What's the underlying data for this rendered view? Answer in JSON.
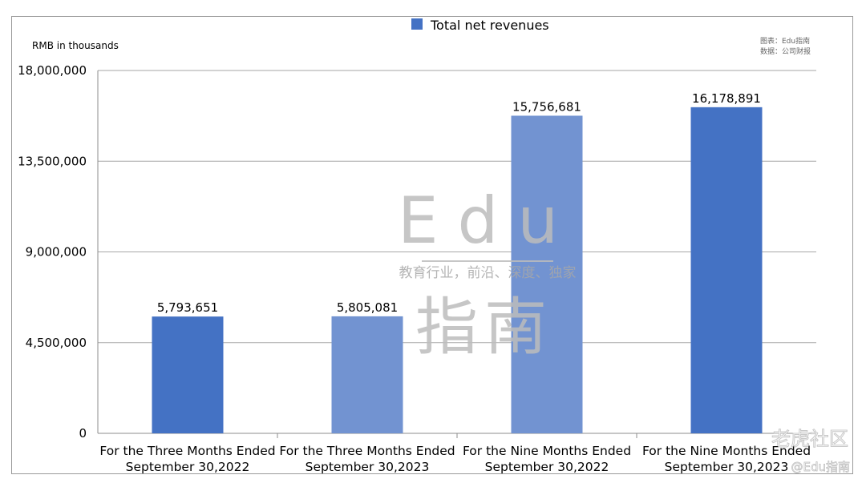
{
  "chart_data": {
    "type": "bar",
    "ylabel": "RMB in thousands",
    "legend": {
      "label": "Total net revenues",
      "color": "#4472C4",
      "position": "top"
    },
    "categories": [
      [
        "For the Three Months Ended",
        "September 30,2022"
      ],
      [
        "For the Three Months Ended",
        "September 30,2023"
      ],
      [
        "For the Nine Months Ended",
        "September 30,2022"
      ],
      [
        "For the Nine Months Ended",
        "September 30,2023"
      ]
    ],
    "values": [
      5793651,
      5805081,
      15756681,
      16178891
    ],
    "value_labels": [
      "5,793,651",
      "5,805,081",
      "15,756,681",
      "16,178,891"
    ],
    "bar_colors": [
      "#4472C4",
      "#7293D1",
      "#7293D1",
      "#4472C4"
    ],
    "ylim": [
      0,
      18000000
    ],
    "yticks": [
      0,
      4500000,
      9000000,
      13500000,
      18000000
    ],
    "ytick_labels": [
      "0",
      "4,500,000",
      "9,000,000",
      "13,500,000",
      "18,000,000"
    ],
    "grid": true
  },
  "source_note": {
    "line1": "图表：Edu指南",
    "line2": "数据：公司财报"
  },
  "watermark": {
    "top": "Edu",
    "slogan": "教育行业，前沿、深度、独家",
    "bottom": "指南",
    "corner_brand": "老虎社区",
    "corner_handle": "@Edu指南"
  }
}
